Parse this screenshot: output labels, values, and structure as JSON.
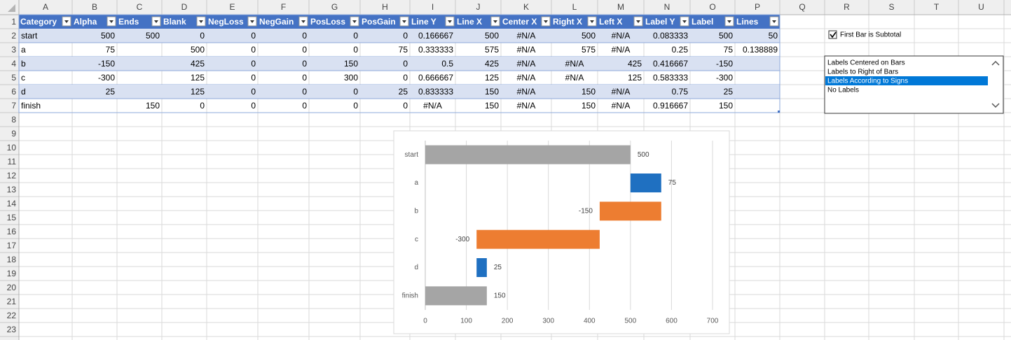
{
  "columns": [
    "A",
    "B",
    "C",
    "D",
    "E",
    "F",
    "G",
    "H",
    "I",
    "J",
    "K",
    "L",
    "M",
    "N",
    "O",
    "P",
    "Q",
    "R",
    "S",
    "T",
    "U"
  ],
  "rows": [
    1,
    2,
    3,
    4,
    5,
    6,
    7,
    8,
    9,
    10,
    11,
    12,
    13,
    14,
    15,
    16,
    17,
    18,
    19,
    20,
    21,
    22,
    23
  ],
  "table": {
    "headers": [
      "Category",
      "Alpha",
      "Ends",
      "Blank",
      "NegLoss",
      "NegGain",
      "PosLoss",
      "PosGain",
      "Line Y",
      "Line X",
      "Center X",
      "Right X",
      "Left X",
      "Label Y",
      "Label",
      "Lines"
    ],
    "rows": [
      [
        "start",
        500,
        500,
        0,
        0,
        0,
        0,
        0,
        0.166667,
        500,
        "#N/A",
        500,
        "#N/A",
        0.083333,
        500,
        50
      ],
      [
        "a",
        75,
        null,
        500,
        0,
        0,
        0,
        75,
        0.333333,
        575,
        "#N/A",
        575,
        "#N/A",
        0.25,
        75,
        0.138889
      ],
      [
        "b",
        -150,
        null,
        425,
        0,
        0,
        150,
        0,
        0.5,
        425,
        "#N/A",
        "#N/A",
        425,
        0.416667,
        -150,
        null
      ],
      [
        "c",
        -300,
        null,
        125,
        0,
        0,
        300,
        0,
        0.666667,
        125,
        "#N/A",
        "#N/A",
        125,
        0.583333,
        -300,
        null
      ],
      [
        "d",
        25,
        null,
        125,
        0,
        0,
        0,
        25,
        0.833333,
        150,
        "#N/A",
        150,
        "#N/A",
        0.75,
        25,
        null
      ],
      [
        "finish",
        null,
        150,
        0,
        0,
        0,
        0,
        0,
        "#N/A",
        150,
        "#N/A",
        150,
        "#N/A",
        0.916667,
        150,
        null
      ]
    ]
  },
  "checkbox": {
    "label": "First Bar is Subtotal",
    "checked": true
  },
  "listbox": {
    "items": [
      "Labels Centered on Bars",
      "Labels to Right of Bars",
      "Labels According to Signs",
      "No Labels"
    ],
    "selected": 2
  },
  "chart_data": {
    "type": "waterfall",
    "categories": [
      "start",
      "a",
      "b",
      "c",
      "d",
      "finish"
    ],
    "values": [
      500,
      75,
      -150,
      -300,
      25,
      150
    ],
    "is_total": [
      true,
      false,
      false,
      false,
      false,
      true
    ],
    "colors": {
      "total": "#a5a5a5",
      "increase": "#1f70c1",
      "decrease": "#ed7d31"
    },
    "xlim": [
      0,
      700
    ],
    "xticks": [
      0,
      100,
      200,
      300,
      400,
      500,
      600,
      700
    ],
    "grid": true
  }
}
